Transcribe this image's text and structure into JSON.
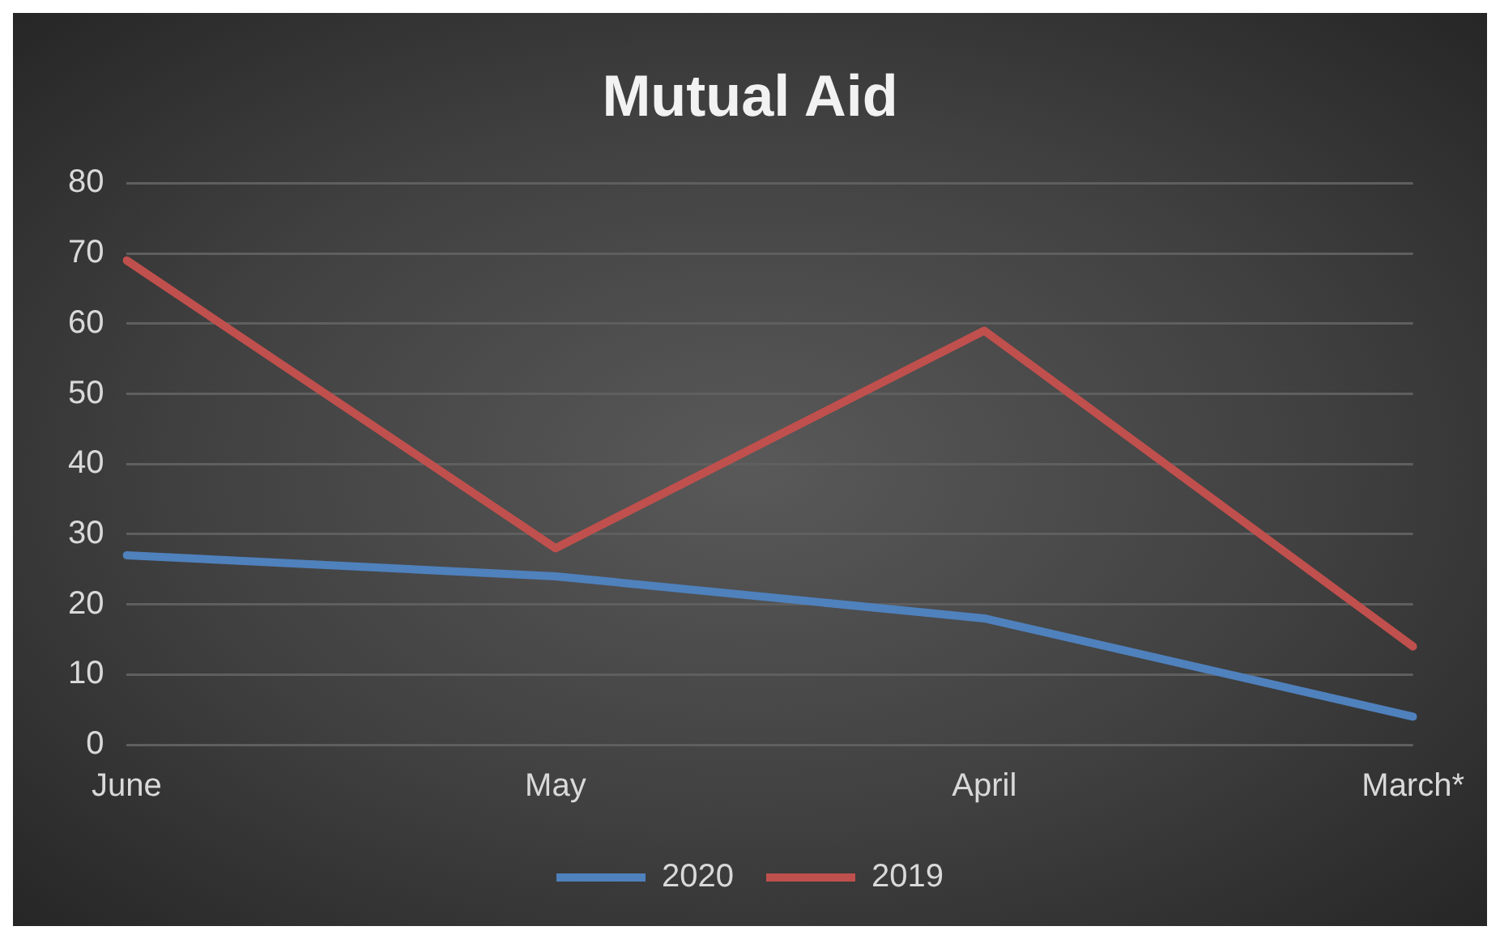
{
  "chart_data": {
    "type": "line",
    "title": "Mutual Aid",
    "categories": [
      "June",
      "May",
      "April",
      "March*"
    ],
    "series": [
      {
        "name": "2020",
        "color": "#4f81bd",
        "values": [
          27,
          24,
          18,
          4
        ]
      },
      {
        "name": "2019",
        "color": "#c0504d",
        "values": [
          69,
          28,
          59,
          14
        ]
      }
    ],
    "ylim": [
      0,
      80
    ],
    "yticks": [
      0,
      10,
      20,
      30,
      40,
      50,
      60,
      70,
      80
    ],
    "grid": "y",
    "legend": "bottom",
    "marker": "none"
  }
}
